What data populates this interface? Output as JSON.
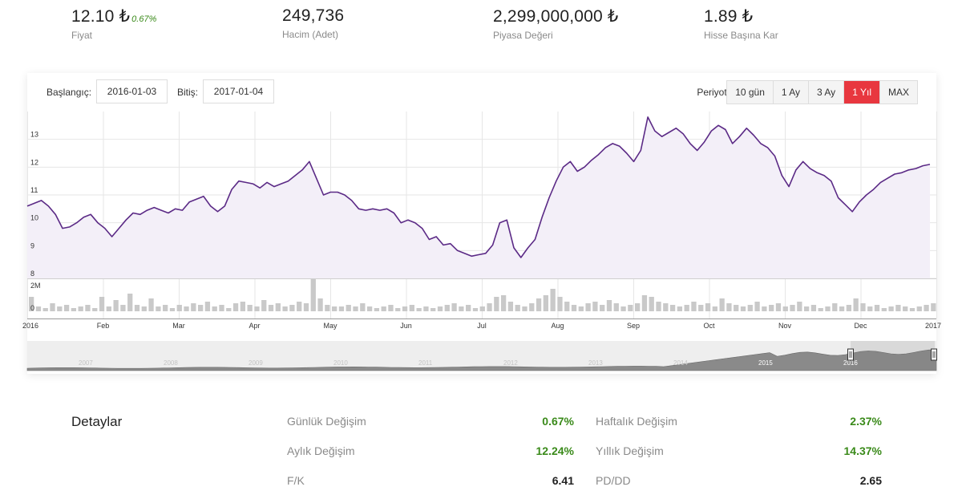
{
  "stats": [
    {
      "value": "12.10 ₺",
      "change": "0.67%",
      "label": "Fiyat"
    },
    {
      "value": "249,736",
      "label": "Hacim (Adet)"
    },
    {
      "value": "2,299,000,000 ₺",
      "label": "Piyasa Değeri"
    },
    {
      "value": "1.89 ₺",
      "label": "Hisse Başına Kar"
    }
  ],
  "controls": {
    "start_label": "Başlangıç:",
    "start_value": "2016-01-03",
    "end_label": "Bitiş:",
    "end_value": "2017-01-04",
    "period_label": "Periyot:",
    "periods": [
      "10 gün",
      "1 Ay",
      "3 Ay",
      "1 Yıl",
      "MAX"
    ],
    "active_period": "1 Yıl"
  },
  "colors": {
    "line": "#5b2a86",
    "area": "#f3eff8",
    "volume": "#c9c9c9",
    "navigator": "#8a8a8a",
    "active": "#e8373f",
    "positive": "#3a8a1a"
  },
  "chart_data": {
    "type": "line",
    "price_axis": {
      "ticks": [
        "8",
        "9",
        "10",
        "11",
        "12",
        "13"
      ],
      "ylim": [
        8,
        14
      ]
    },
    "volume_axis": {
      "ticks": [
        "0",
        "2M"
      ]
    },
    "x_ticks": [
      "2016",
      "Feb",
      "Mar",
      "Apr",
      "May",
      "Jun",
      "Jul",
      "Aug",
      "Sep",
      "Oct",
      "Nov",
      "Dec",
      "2017"
    ],
    "navigator_ticks": [
      "2007",
      "2008",
      "2009",
      "2010",
      "2011",
      "2012",
      "2013",
      "2014",
      "2015",
      "2016"
    ],
    "series": [
      {
        "values": [
          10.6,
          10.7,
          10.8,
          10.6,
          10.3,
          9.8,
          9.85,
          10.0,
          10.2,
          10.3,
          10.0,
          9.8,
          9.5,
          9.8,
          10.1,
          10.35,
          10.3,
          10.45,
          10.55,
          10.45,
          10.35,
          10.5,
          10.45,
          10.75,
          10.85,
          10.95,
          10.6,
          10.4,
          10.6,
          11.2,
          11.5,
          11.45,
          11.4,
          11.25,
          11.45,
          11.3,
          11.4,
          11.5,
          11.7,
          11.9,
          12.2,
          11.6,
          11.0,
          11.1,
          11.1,
          11.0,
          10.8,
          10.5,
          10.45,
          10.5,
          10.45,
          10.5,
          10.35,
          10.0,
          10.1,
          10.0,
          9.8,
          9.4,
          9.5,
          9.2,
          9.25,
          9.0,
          8.9,
          8.8,
          8.85,
          8.9,
          9.2,
          10.0,
          10.1,
          9.1,
          8.75,
          9.1,
          9.4,
          10.2,
          10.9,
          11.5,
          12.0,
          12.2,
          11.85,
          12.0,
          12.25,
          12.45,
          12.7,
          12.85,
          12.75,
          12.5,
          12.2,
          12.6,
          13.8,
          13.3,
          13.1,
          13.25,
          13.4,
          13.2,
          12.85,
          12.6,
          12.9,
          13.3,
          13.5,
          13.35,
          12.85,
          13.1,
          13.4,
          13.15,
          12.85,
          12.7,
          12.4,
          11.7,
          11.3,
          11.9,
          12.2,
          11.95,
          11.8,
          11.7,
          11.5,
          10.9,
          10.65,
          10.4,
          10.75,
          11.0,
          11.2,
          11.45,
          11.6,
          11.75,
          11.8,
          11.9,
          11.95,
          12.05,
          12.1
        ]
      }
    ],
    "volume_values": [
      0.9,
      0.3,
      0.2,
      0.5,
      0.3,
      0.4,
      0.2,
      0.3,
      0.4,
      0.2,
      0.9,
      0.3,
      0.7,
      0.4,
      1.1,
      0.4,
      0.3,
      0.8,
      0.3,
      0.4,
      0.2,
      0.4,
      0.3,
      0.5,
      0.4,
      0.6,
      0.3,
      0.4,
      0.2,
      0.5,
      0.6,
      0.4,
      0.3,
      0.7,
      0.4,
      0.5,
      0.3,
      0.4,
      0.6,
      0.5,
      2.0,
      0.8,
      0.4,
      0.3,
      0.3,
      0.4,
      0.3,
      0.5,
      0.3,
      0.2,
      0.3,
      0.4,
      0.2,
      0.3,
      0.4,
      0.2,
      0.3,
      0.2,
      0.3,
      0.4,
      0.5,
      0.3,
      0.4,
      0.2,
      0.3,
      0.5,
      0.9,
      1.0,
      0.6,
      0.4,
      0.3,
      0.5,
      0.8,
      1.0,
      1.4,
      0.9,
      0.6,
      0.4,
      0.3,
      0.5,
      0.6,
      0.4,
      0.7,
      0.5,
      0.3,
      0.4,
      0.5,
      1.0,
      0.9,
      0.6,
      0.5,
      0.4,
      0.3,
      0.4,
      0.6,
      0.4,
      0.5,
      0.3,
      0.8,
      0.5,
      0.4,
      0.3,
      0.4,
      0.6,
      0.3,
      0.4,
      0.5,
      0.3,
      0.4,
      0.6,
      0.3,
      0.4,
      0.2,
      0.3,
      0.5,
      0.3,
      0.4,
      0.8,
      0.5,
      0.3,
      0.4,
      0.2,
      0.3,
      0.4,
      0.3,
      0.2,
      0.3,
      0.4,
      0.5
    ]
  },
  "details": {
    "title": "Detaylar",
    "left": [
      {
        "label": "Günlük Değişim",
        "value": "0.67%",
        "tone": "green"
      },
      {
        "label": "Aylık Değişim",
        "value": "12.24%",
        "tone": "green"
      },
      {
        "label": "F/K",
        "value": "6.41",
        "tone": "dark"
      }
    ],
    "right": [
      {
        "label": "Haftalık Değişim",
        "value": "2.37%",
        "tone": "green"
      },
      {
        "label": "Yıllık Değişim",
        "value": "14.37%",
        "tone": "green"
      },
      {
        "label": "PD/DD",
        "value": "2.65",
        "tone": "dark"
      }
    ]
  }
}
